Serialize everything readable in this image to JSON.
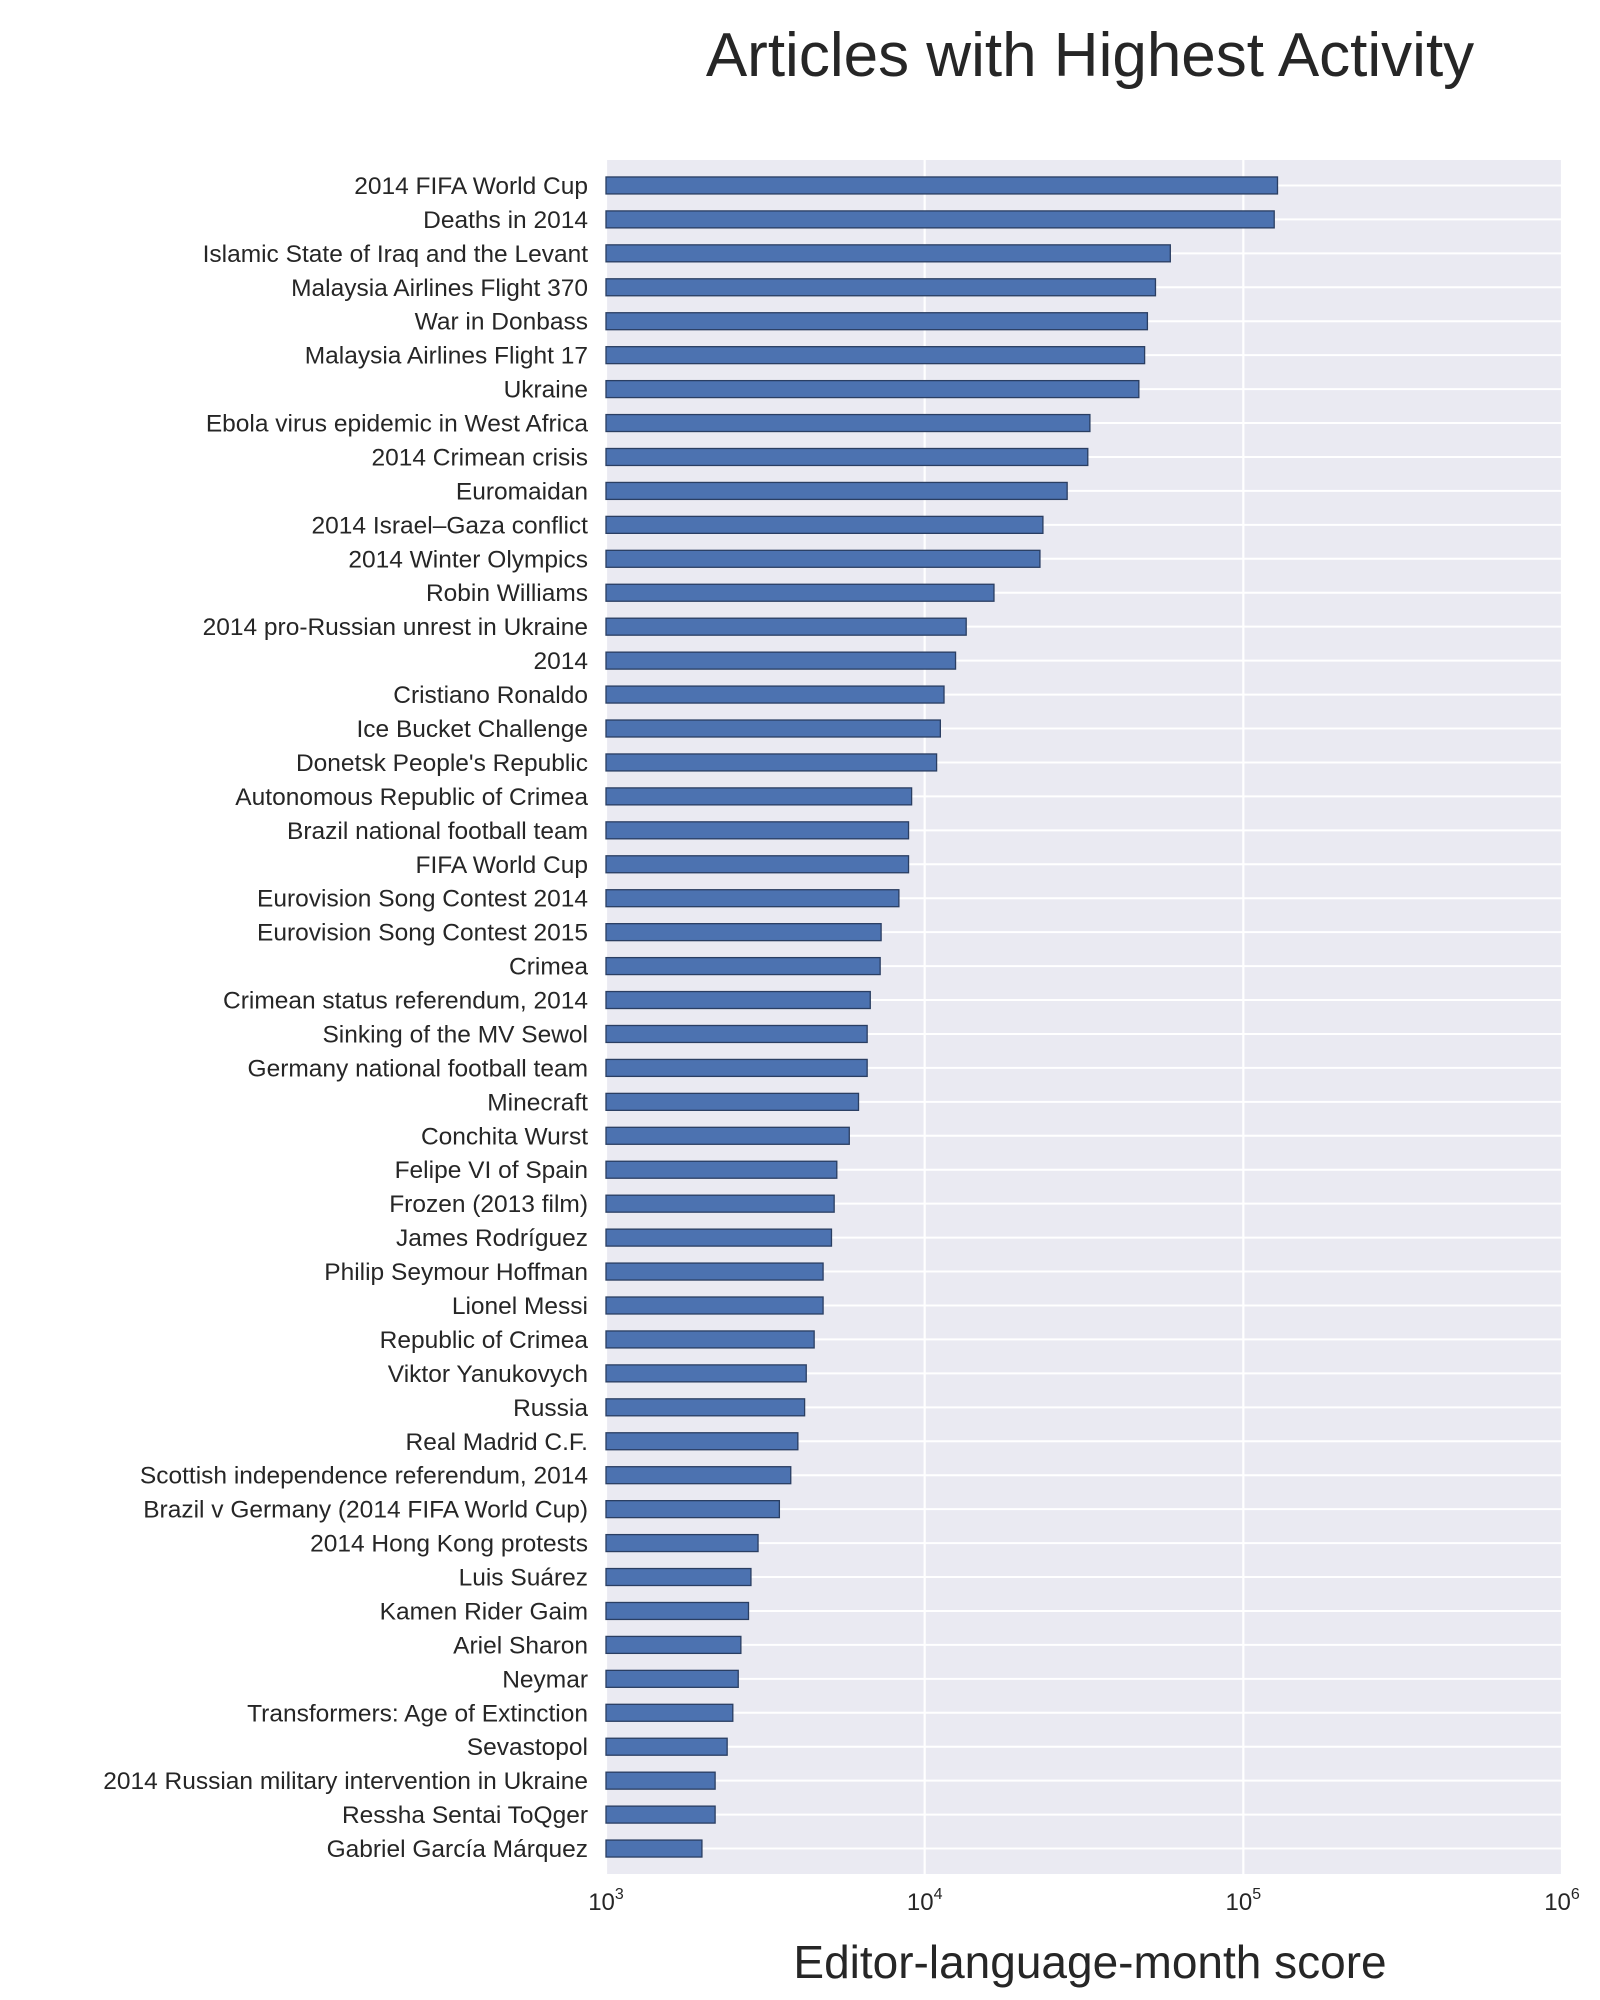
{
  "chart_data": {
    "type": "bar",
    "orientation": "horizontal",
    "title": "Articles with Highest Activity",
    "xlabel": "Editor-language-month score",
    "ylabel": "",
    "xscale": "log",
    "xlim": [
      1000,
      1000000
    ],
    "xticks": [
      {
        "value": 1000,
        "base": "10",
        "exp": "3"
      },
      {
        "value": 10000,
        "base": "10",
        "exp": "4"
      },
      {
        "value": 100000,
        "base": "10",
        "exp": "5"
      },
      {
        "value": 1000000,
        "base": "10",
        "exp": "6"
      }
    ],
    "grid": true,
    "bar_color": "#4c72b0",
    "background_color": "#eaeaf2",
    "categories": [
      "2014 FIFA World Cup",
      "Deaths in 2014",
      "Islamic State of Iraq and the Levant",
      "Malaysia Airlines Flight 370",
      "War in Donbass",
      "Malaysia Airlines Flight 17",
      "Ukraine",
      "Ebola virus epidemic in West Africa",
      "2014 Crimean crisis",
      "Euromaidan",
      "2014 Israel–Gaza conflict",
      "2014 Winter Olympics",
      "Robin Williams",
      "2014 pro-Russian unrest in Ukraine",
      "2014",
      "Cristiano Ronaldo",
      "Ice Bucket Challenge",
      "Donetsk People's Republic",
      "Autonomous Republic of Crimea",
      "Brazil national football team",
      "FIFA World Cup",
      "Eurovision Song Contest 2014",
      "Eurovision Song Contest 2015",
      "Crimea",
      "Crimean status referendum, 2014",
      "Sinking of the MV Sewol",
      "Germany national football team",
      "Minecraft",
      "Conchita Wurst",
      "Felipe VI of Spain",
      "Frozen (2013 film)",
      "James Rodríguez",
      "Philip Seymour Hoffman",
      "Lionel Messi",
      "Republic of Crimea",
      "Viktor Yanukovych",
      "Russia",
      "Real Madrid C.F.",
      "Scottish independence referendum, 2014",
      "Brazil v Germany (2014 FIFA World Cup)",
      "2014 Hong Kong protests",
      "Luis Suárez",
      "Kamen Rider Gaim",
      "Ariel Sharon",
      "Neymar",
      "Transformers: Age of Extinction",
      "Sevastopol",
      "2014 Russian military intervention in Ukraine",
      "Ressha Sentai ToQger",
      "Gabriel García Márquez"
    ],
    "values": [
      128000,
      125000,
      59000,
      53000,
      50000,
      49000,
      47000,
      33000,
      32500,
      28000,
      23500,
      23000,
      16500,
      13500,
      12500,
      11500,
      11200,
      10900,
      9100,
      8900,
      8900,
      8300,
      7300,
      7250,
      6750,
      6600,
      6600,
      6200,
      5800,
      5300,
      5200,
      5100,
      4800,
      4800,
      4500,
      4250,
      4200,
      4000,
      3800,
      3500,
      3000,
      2850,
      2800,
      2650,
      2600,
      2500,
      2400,
      2200,
      2200,
      2000
    ]
  }
}
